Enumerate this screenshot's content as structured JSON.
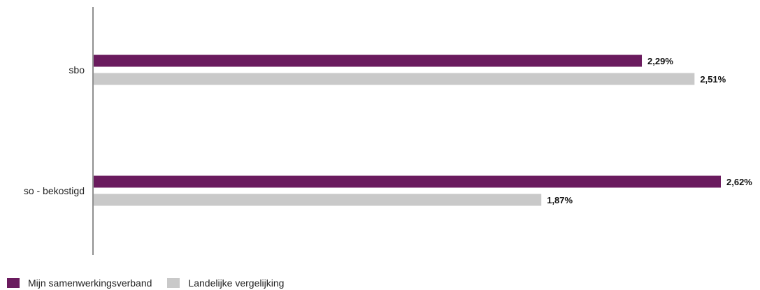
{
  "chart_data": {
    "type": "bar",
    "orientation": "horizontal",
    "categories": [
      "sbo",
      "so - bekostigd"
    ],
    "series": [
      {
        "name": "Mijn samenwerkingsverband",
        "color": "#6a1b5e",
        "values": [
          2.29,
          2.62
        ],
        "labels": [
          "2,29%",
          "2,62%"
        ]
      },
      {
        "name": "Landelijke vergelijking",
        "color": "#c9c9c9",
        "values": [
          2.51,
          1.87
        ],
        "labels": [
          "2,51%",
          "1,87%"
        ]
      }
    ],
    "xlim": [
      0,
      2.62
    ],
    "grid": false,
    "legend_position": "bottom-left",
    "title": "",
    "xlabel": "",
    "ylabel": ""
  }
}
